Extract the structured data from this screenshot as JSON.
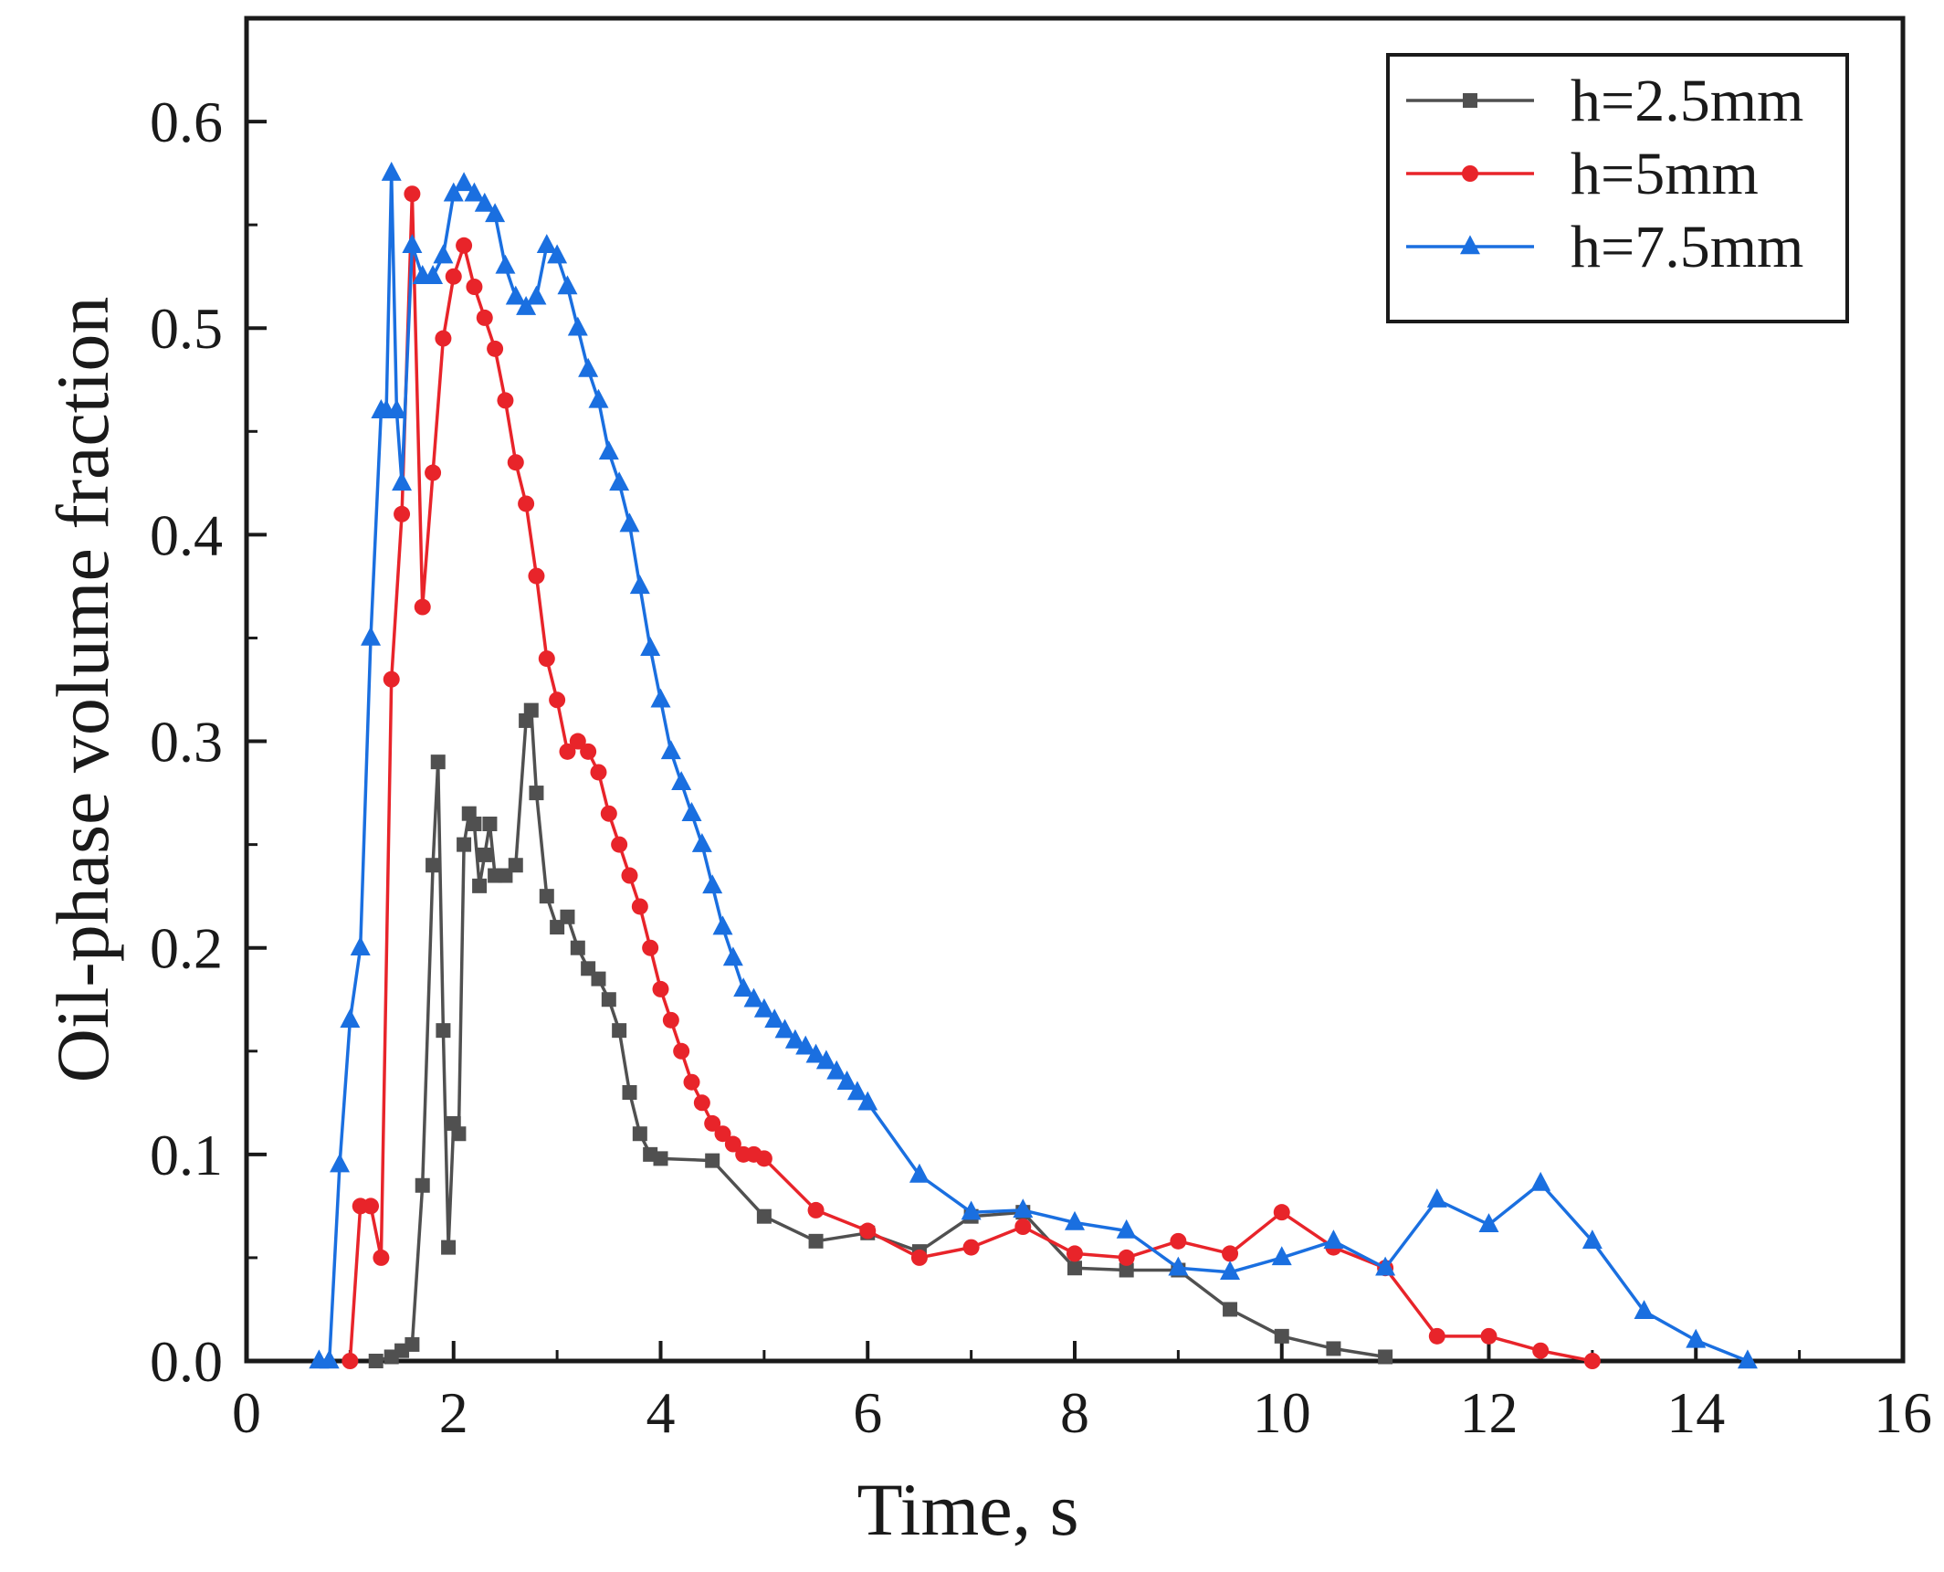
{
  "chart_data": {
    "type": "line",
    "title": "",
    "xlabel": "Time, s",
    "ylabel": "Oil-phase volume fraction",
    "xlim": [
      0,
      16
    ],
    "ylim": [
      0,
      0.65
    ],
    "xticks": [
      "0",
      "2",
      "4",
      "6",
      "8",
      "10",
      "12",
      "14",
      "16"
    ],
    "yticks": [
      "0.0",
      "0.1",
      "0.2",
      "0.3",
      "0.4",
      "0.5",
      "0.6"
    ],
    "grid": false,
    "legend_position": "top-right",
    "series": [
      {
        "name": "h=2.5mm",
        "color": "#505050",
        "marker": "square",
        "x": [
          1.25,
          1.4,
          1.5,
          1.6,
          1.7,
          1.8,
          1.85,
          1.9,
          1.95,
          2.0,
          2.05,
          2.1,
          2.15,
          2.2,
          2.25,
          2.3,
          2.35,
          2.4,
          2.5,
          2.6,
          2.7,
          2.75,
          2.8,
          2.9,
          3.0,
          3.1,
          3.2,
          3.3,
          3.4,
          3.5,
          3.6,
          3.7,
          3.8,
          3.9,
          4.0,
          4.5,
          5.0,
          5.5,
          6.0,
          6.5,
          7.0,
          7.5,
          8.0,
          8.5,
          9.0,
          9.5,
          10.0,
          10.5,
          11.0
        ],
        "y": [
          0.0,
          0.002,
          0.005,
          0.008,
          0.085,
          0.24,
          0.29,
          0.16,
          0.055,
          0.115,
          0.11,
          0.25,
          0.265,
          0.26,
          0.23,
          0.245,
          0.26,
          0.235,
          0.235,
          0.24,
          0.31,
          0.315,
          0.275,
          0.225,
          0.21,
          0.215,
          0.2,
          0.19,
          0.185,
          0.175,
          0.16,
          0.13,
          0.11,
          0.1,
          0.098,
          0.097,
          0.07,
          0.058,
          0.062,
          0.053,
          0.07,
          0.072,
          0.045,
          0.044,
          0.044,
          0.025,
          0.012,
          0.006,
          0.002
        ]
      },
      {
        "name": "h=5mm",
        "color": "#e8242a",
        "marker": "circle",
        "x": [
          1.0,
          1.1,
          1.2,
          1.3,
          1.4,
          1.5,
          1.6,
          1.7,
          1.8,
          1.9,
          2.0,
          2.1,
          2.2,
          2.3,
          2.4,
          2.5,
          2.6,
          2.7,
          2.8,
          2.9,
          3.0,
          3.1,
          3.2,
          3.3,
          3.4,
          3.5,
          3.6,
          3.7,
          3.8,
          3.9,
          4.0,
          4.1,
          4.2,
          4.3,
          4.4,
          4.5,
          4.6,
          4.7,
          4.8,
          4.9,
          5.0,
          5.5,
          6.0,
          6.5,
          7.0,
          7.5,
          8.0,
          8.5,
          9.0,
          9.5,
          10.0,
          10.5,
          11.0,
          11.5,
          12.0,
          12.5,
          13.0
        ],
        "y": [
          0.0,
          0.075,
          0.075,
          0.05,
          0.33,
          0.41,
          0.565,
          0.365,
          0.43,
          0.495,
          0.525,
          0.54,
          0.52,
          0.505,
          0.49,
          0.465,
          0.435,
          0.415,
          0.38,
          0.34,
          0.32,
          0.295,
          0.3,
          0.295,
          0.285,
          0.265,
          0.25,
          0.235,
          0.22,
          0.2,
          0.18,
          0.165,
          0.15,
          0.135,
          0.125,
          0.115,
          0.11,
          0.105,
          0.1,
          0.1,
          0.098,
          0.073,
          0.063,
          0.05,
          0.055,
          0.065,
          0.052,
          0.05,
          0.058,
          0.052,
          0.072,
          0.055,
          0.045,
          0.012,
          0.012,
          0.005,
          0.0
        ]
      },
      {
        "name": "h=7.5mm",
        "color": "#1a6fe0",
        "marker": "triangle",
        "x": [
          0.7,
          0.8,
          0.9,
          1.0,
          1.1,
          1.2,
          1.3,
          1.35,
          1.4,
          1.45,
          1.5,
          1.6,
          1.7,
          1.8,
          1.9,
          2.0,
          2.1,
          2.2,
          2.3,
          2.4,
          2.5,
          2.6,
          2.7,
          2.8,
          2.9,
          3.0,
          3.1,
          3.2,
          3.3,
          3.4,
          3.5,
          3.6,
          3.7,
          3.8,
          3.9,
          4.0,
          4.1,
          4.2,
          4.3,
          4.4,
          4.5,
          4.6,
          4.7,
          4.8,
          4.9,
          5.0,
          5.1,
          5.2,
          5.3,
          5.4,
          5.5,
          5.6,
          5.7,
          5.8,
          5.9,
          6.0,
          6.5,
          7.0,
          7.5,
          8.0,
          8.5,
          9.0,
          9.5,
          10.0,
          10.5,
          11.0,
          11.5,
          12.0,
          12.5,
          13.0,
          13.5,
          14.0,
          14.5
        ],
        "y": [
          0.0,
          0.0,
          0.095,
          0.165,
          0.2,
          0.35,
          0.46,
          0.46,
          0.575,
          0.46,
          0.425,
          0.54,
          0.525,
          0.525,
          0.535,
          0.565,
          0.57,
          0.565,
          0.56,
          0.555,
          0.53,
          0.515,
          0.51,
          0.515,
          0.54,
          0.535,
          0.52,
          0.5,
          0.48,
          0.465,
          0.44,
          0.425,
          0.405,
          0.375,
          0.345,
          0.32,
          0.295,
          0.28,
          0.265,
          0.25,
          0.23,
          0.21,
          0.195,
          0.18,
          0.175,
          0.17,
          0.165,
          0.16,
          0.155,
          0.152,
          0.148,
          0.145,
          0.14,
          0.135,
          0.13,
          0.125,
          0.09,
          0.072,
          0.073,
          0.067,
          0.063,
          0.045,
          0.043,
          0.05,
          0.058,
          0.045,
          0.078,
          0.066,
          0.086,
          0.058,
          0.024,
          0.01,
          0.0
        ]
      }
    ]
  }
}
